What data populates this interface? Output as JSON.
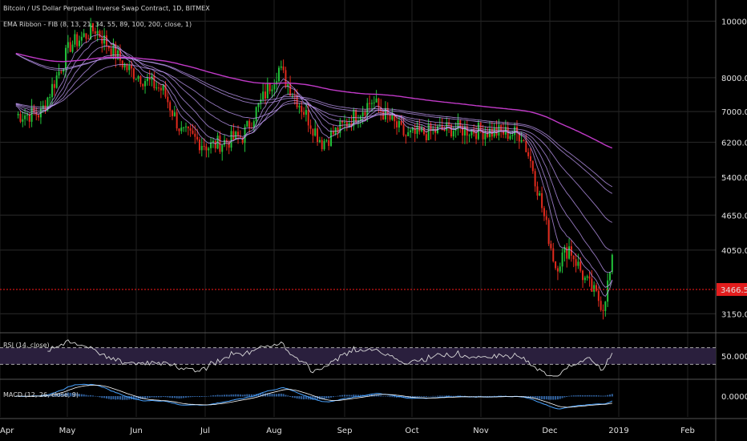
{
  "chart_data": {
    "type": "candlestick",
    "title": "Bitcoin / US Dollar Perpetual Inverse Swap Contract, 1D, BITMEX",
    "indicator_main": "EMA Ribbon - FIB (8, 13, 21, 34, 55, 89, 100, 200, close, 1)",
    "y_scale": "log",
    "ylim": [
      2950,
      10600
    ],
    "y_ticks": [
      "10000.0",
      "8000.0",
      "7000.0",
      "6200.0",
      "5400.0",
      "4650.0",
      "4050.0",
      "3150.0"
    ],
    "y_tick_values": [
      10000,
      8000,
      7000,
      6200,
      5400,
      4650,
      4050,
      3150
    ],
    "x_ticks": [
      "Apr",
      "May",
      "Jun",
      "Jul",
      "Aug",
      "Sep",
      "Oct",
      "Nov",
      "Dec",
      "2019",
      "Feb"
    ],
    "last_price": "3466.5",
    "last_price_value": 3466.5,
    "price_anchors": {
      "dates_approx": [
        "Apr 1",
        "Apr 12",
        "Apr 25",
        "May 6",
        "May 20",
        "Jun 5",
        "Jun 13",
        "Jun 25",
        "Jul 10",
        "Jul 26",
        "Aug 14",
        "Aug 22",
        "Sep 5",
        "Sep 20",
        "Oct 10",
        "Nov 10",
        "Nov 15",
        "Nov 25",
        "Dec 1",
        "Dec 8",
        "Dec 16",
        "Dec 20"
      ],
      "close": [
        6900,
        6950,
        9100,
        9700,
        8300,
        7600,
        6450,
        6100,
        6350,
        8300,
        6200,
        6550,
        7300,
        6350,
        6550,
        6400,
        5600,
        3800,
        4100,
        3600,
        3250,
        3850
      ]
    },
    "ema_last_values": [
      3850,
      4050,
      4650,
      5200,
      5700,
      6120
    ],
    "ema_200_last": 6120,
    "rsi": {
      "label": "RSI (14, close)",
      "ylim": [
        0,
        100
      ],
      "upper_band": 70,
      "lower_band": 30,
      "tick": "50.0000",
      "tick_value": 50
    },
    "macd": {
      "label": "MACD (12, 26, close, 9)",
      "tick": "0.0000",
      "tick_value": 0
    }
  },
  "colors": {
    "background": "#000000",
    "up_candle": "#22c33a",
    "down_candle": "#e22a1d",
    "ema_ribbon": "#c8a0ff",
    "ema_200": "#c13ac8",
    "price_line": "#ff1a1a",
    "rsi_line": "#d8d8d8",
    "rsi_band_fill": "#2a1f3d",
    "macd_line": "#4aa3ff",
    "signal_line": "#ffffff",
    "histogram": "#3d7ac7"
  }
}
